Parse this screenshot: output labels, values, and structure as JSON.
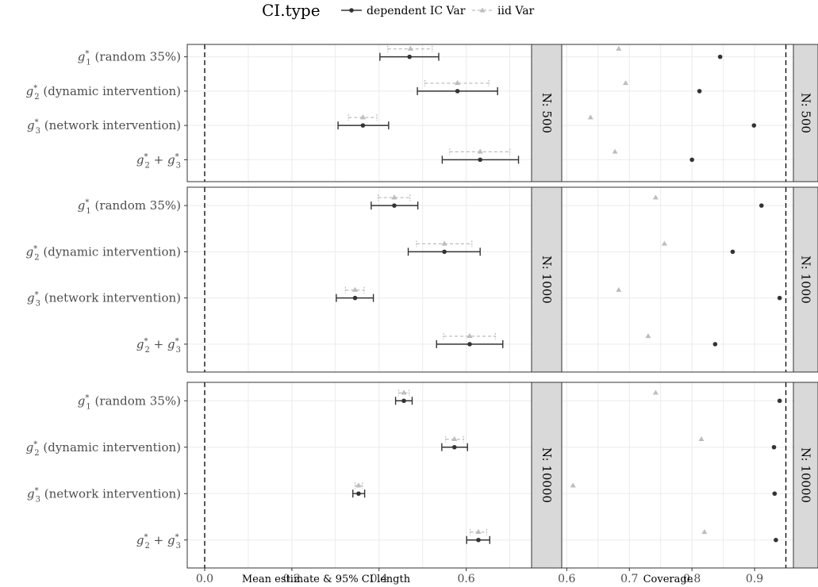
{
  "chart_data": {
    "type": "scatter",
    "legend": {
      "title": "CI.type",
      "entries": [
        {
          "name": "dependent IC Var",
          "color": "#333333",
          "marker": "circle",
          "line": "solid"
        },
        {
          "name": "iid Var",
          "color": "#bdbdbd",
          "marker": "triangle",
          "line": "dashed"
        }
      ],
      "position": "top"
    },
    "categories": [
      {
        "base": "g",
        "sub": "1",
        "rest": " (random 35%)"
      },
      {
        "base": "g",
        "sub": "2",
        "rest": " (dynamic intervention)"
      },
      {
        "base": "g",
        "sub": "3",
        "rest": " (network intervention)"
      },
      {
        "base": "g",
        "sub": "2",
        "rest": " + ",
        "base2": "g",
        "sub2": "3"
      }
    ],
    "facets": [
      {
        "label": "N: 500",
        "estimates": [
          {
            "dep": {
              "est": 0.47,
              "low": 0.402,
              "high": 0.537
            },
            "iid": {
              "est": 0.472,
              "low": 0.42,
              "high": 0.522
            }
          },
          {
            "dep": {
              "est": 0.58,
              "low": 0.488,
              "high": 0.672
            },
            "iid": {
              "est": 0.58,
              "low": 0.505,
              "high": 0.652
            }
          },
          {
            "dep": {
              "est": 0.363,
              "low": 0.306,
              "high": 0.422
            },
            "iid": {
              "est": 0.363,
              "low": 0.33,
              "high": 0.395
            }
          },
          {
            "dep": {
              "est": 0.632,
              "low": 0.545,
              "high": 0.72
            },
            "iid": {
              "est": 0.632,
              "low": 0.562,
              "high": 0.7
            }
          }
        ],
        "coverage": [
          {
            "dep": 0.845,
            "iid": 0.683
          },
          {
            "dep": 0.812,
            "iid": 0.694
          },
          {
            "dep": 0.899,
            "iid": 0.638
          },
          {
            "dep": 0.8,
            "iid": 0.677
          }
        ]
      },
      {
        "label": "N: 1000",
        "estimates": [
          {
            "dep": {
              "est": 0.435,
              "low": 0.382,
              "high": 0.489
            },
            "iid": {
              "est": 0.435,
              "low": 0.398,
              "high": 0.471
            }
          },
          {
            "dep": {
              "est": 0.55,
              "low": 0.467,
              "high": 0.632
            },
            "iid": {
              "est": 0.55,
              "low": 0.486,
              "high": 0.613
            }
          },
          {
            "dep": {
              "est": 0.345,
              "low": 0.302,
              "high": 0.387
            },
            "iid": {
              "est": 0.345,
              "low": 0.323,
              "high": 0.366
            }
          },
          {
            "dep": {
              "est": 0.608,
              "low": 0.532,
              "high": 0.684
            },
            "iid": {
              "est": 0.608,
              "low": 0.548,
              "high": 0.667
            }
          }
        ],
        "coverage": [
          {
            "dep": 0.911,
            "iid": 0.742
          },
          {
            "dep": 0.865,
            "iid": 0.756
          },
          {
            "dep": 0.94,
            "iid": 0.683
          },
          {
            "dep": 0.837,
            "iid": 0.73
          }
        ]
      },
      {
        "label": "N: 10000",
        "estimates": [
          {
            "dep": {
              "est": 0.457,
              "low": 0.438,
              "high": 0.476
            },
            "iid": {
              "est": 0.457,
              "low": 0.445,
              "high": 0.469
            }
          },
          {
            "dep": {
              "est": 0.573,
              "low": 0.544,
              "high": 0.603
            },
            "iid": {
              "est": 0.573,
              "low": 0.553,
              "high": 0.594
            }
          },
          {
            "dep": {
              "est": 0.353,
              "low": 0.34,
              "high": 0.367
            },
            "iid": {
              "est": 0.353,
              "low": 0.345,
              "high": 0.362
            }
          },
          {
            "dep": {
              "est": 0.628,
              "low": 0.601,
              "high": 0.654
            },
            "iid": {
              "est": 0.628,
              "low": 0.609,
              "high": 0.647
            }
          }
        ],
        "coverage": [
          {
            "dep": 0.94,
            "iid": 0.742
          },
          {
            "dep": 0.931,
            "iid": 0.815
          },
          {
            "dep": 0.932,
            "iid": 0.61
          },
          {
            "dep": 0.934,
            "iid": 0.82
          }
        ]
      }
    ],
    "left_panel": {
      "xlabel": "Mean estimate & 95% CI length",
      "xlim": [
        -0.04,
        0.75
      ],
      "ticks": [
        0.0,
        0.2,
        0.4,
        0.6
      ],
      "tick_labels": [
        "0.0",
        "0.2",
        "0.4",
        "0.6"
      ],
      "reference_line": 0.0
    },
    "right_panel": {
      "xlabel": "Coverage",
      "xlim": [
        0.592,
        0.962
      ],
      "ticks": [
        0.6,
        0.7,
        0.8,
        0.9
      ],
      "tick_labels": [
        "0.6",
        "0.7",
        "0.8",
        "0.9"
      ],
      "reference_line": 0.95
    },
    "grid": true
  },
  "colors": {
    "dependent": "#333333",
    "iid": "#bdbdbd",
    "strip": "#d9d9d9",
    "grid": "#ebebeb"
  }
}
